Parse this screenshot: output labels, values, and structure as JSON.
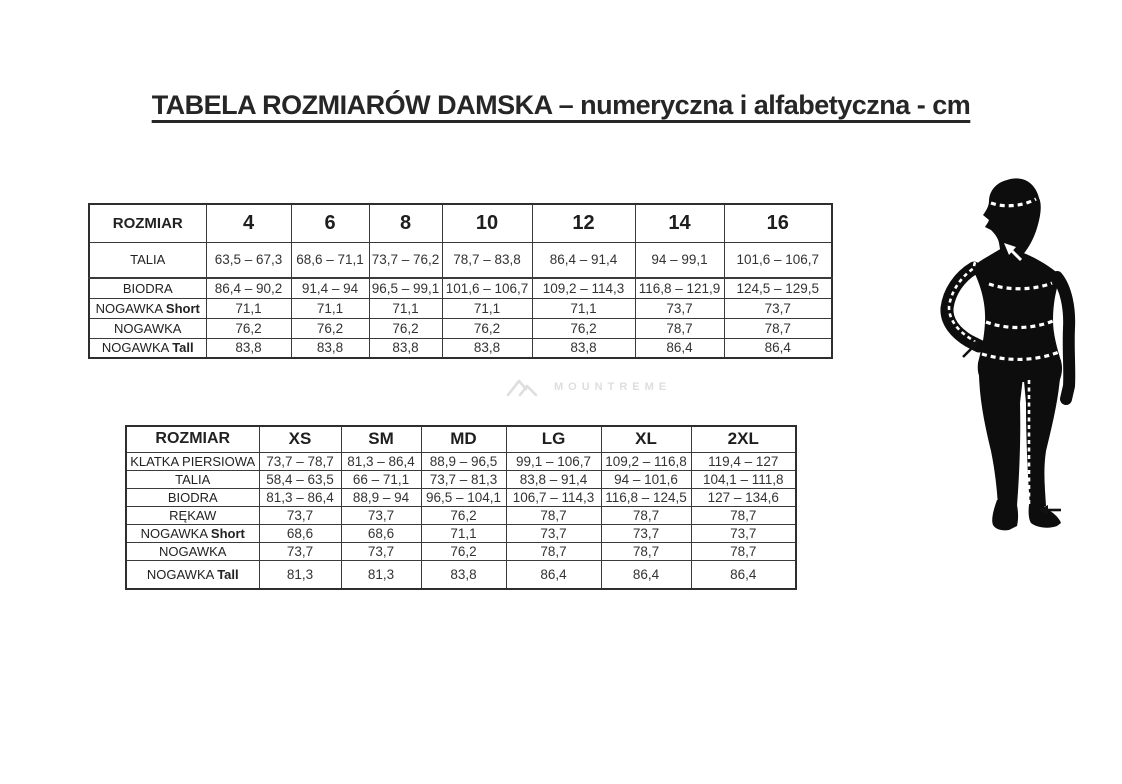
{
  "title": "TABELA ROZMIARÓW DAMSKA – numeryczna i alfabetyczna - cm",
  "units": "cm",
  "watermark": {
    "brand": "MOUNTREME"
  },
  "tables": {
    "numeric": {
      "header": [
        "ROZMIAR",
        "4",
        "6",
        "8",
        "10",
        "12",
        "14",
        "16"
      ],
      "rows": [
        {
          "label": "TALIA",
          "suffix": "",
          "values": [
            "63,5 – 67,3",
            "68,6 – 71,1",
            "73,7 – 76,2",
            "78,7 – 83,8",
            "86,4 – 91,4",
            "94 – 99,1",
            "101,6 – 106,7"
          ]
        },
        {
          "label": "BIODRA",
          "suffix": "",
          "values": [
            "86,4 – 90,2",
            "91,4 – 94",
            "96,5 – 99,1",
            "101,6 – 106,7",
            "109,2 – 114,3",
            "116,8 – 121,9",
            "124,5 – 129,5"
          ]
        },
        {
          "label": "NOGAWKA",
          "suffix": "Short",
          "values": [
            "71,1",
            "71,1",
            "71,1",
            "71,1",
            "71,1",
            "73,7",
            "73,7"
          ]
        },
        {
          "label": "NOGAWKA",
          "suffix": "",
          "values": [
            "76,2",
            "76,2",
            "76,2",
            "76,2",
            "76,2",
            "78,7",
            "78,7"
          ]
        },
        {
          "label": "NOGAWKA",
          "suffix": "Tall",
          "values": [
            "83,8",
            "83,8",
            "83,8",
            "83,8",
            "83,8",
            "86,4",
            "86,4"
          ]
        }
      ]
    },
    "alpha": {
      "header": [
        "ROZMIAR",
        "XS",
        "SM",
        "MD",
        "LG",
        "XL",
        "2XL"
      ],
      "rows": [
        {
          "label": "KLATKA PIERSIOWA",
          "suffix": "",
          "values": [
            "73,7 – 78,7",
            "81,3 – 86,4",
            "88,9 – 96,5",
            "99,1 – 106,7",
            "109,2 – 116,8",
            "119,4 – 127"
          ]
        },
        {
          "label": "TALIA",
          "suffix": "",
          "values": [
            "58,4 – 63,5",
            "66 – 71,1",
            "73,7 – 81,3",
            "83,8 – 91,4",
            "94 – 101,6",
            "104,1 – 111,8"
          ]
        },
        {
          "label": "BIODRA",
          "suffix": "",
          "values": [
            "81,3 – 86,4",
            "88,9 – 94",
            "96,5 – 104,1",
            "106,7 – 114,3",
            "116,8 – 124,5",
            "127 – 134,6"
          ]
        },
        {
          "label": "RĘKAW",
          "suffix": "",
          "values": [
            "73,7",
            "73,7",
            "76,2",
            "78,7",
            "78,7",
            "78,7"
          ]
        },
        {
          "label": "NOGAWKA",
          "suffix": "Short",
          "values": [
            "68,6",
            "68,6",
            "71,1",
            "73,7",
            "73,7",
            "73,7"
          ]
        },
        {
          "label": "NOGAWKA",
          "suffix": "",
          "values": [
            "73,7",
            "73,7",
            "76,2",
            "78,7",
            "78,7",
            "78,7"
          ]
        },
        {
          "label": "NOGAWKA",
          "suffix": "Tall",
          "values": [
            "81,3",
            "81,3",
            "83,8",
            "86,4",
            "86,4",
            "86,4"
          ]
        }
      ]
    }
  },
  "figure": {
    "measurement_lines": [
      "head",
      "sleeve",
      "chest",
      "waist",
      "hips",
      "inseam"
    ]
  },
  "colors": {
    "text": "#2b2b2b",
    "table_border": "#3a3a3a",
    "silhouette": "#0d0d0d",
    "watermark": "#dedede"
  }
}
